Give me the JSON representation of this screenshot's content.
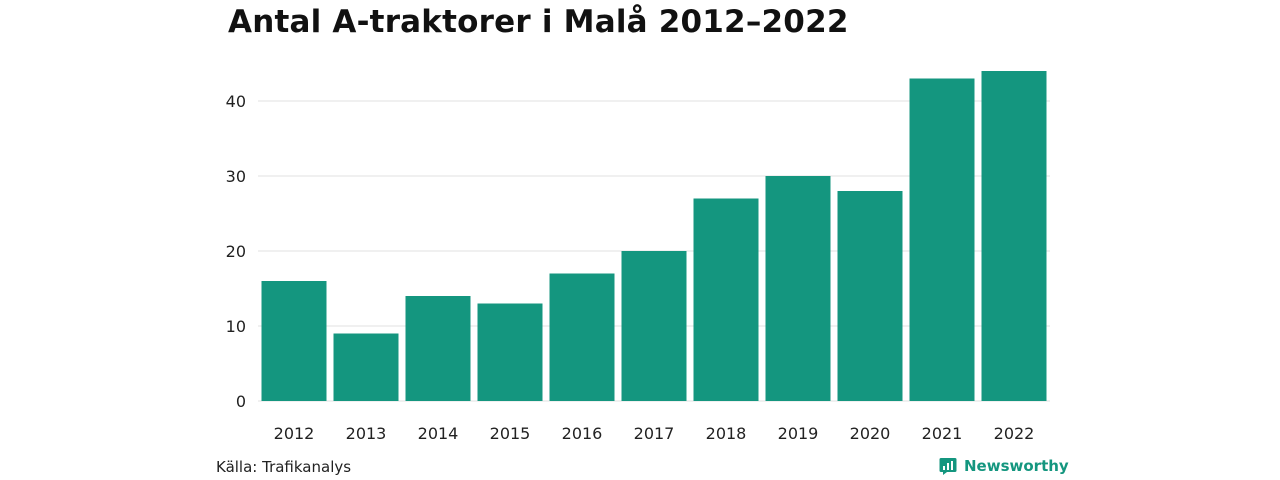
{
  "chart_data": {
    "type": "bar",
    "title": "Antal A-traktorer i Malå 2012–2022",
    "categories": [
      "2012",
      "2013",
      "2014",
      "2015",
      "2016",
      "2017",
      "2018",
      "2019",
      "2020",
      "2021",
      "2022"
    ],
    "values": [
      16,
      9,
      14,
      13,
      17,
      20,
      27,
      30,
      28,
      43,
      44
    ],
    "xlabel": "",
    "ylabel": "",
    "ylim": [
      0,
      44
    ],
    "yticks": [
      0,
      10,
      20,
      30,
      40
    ],
    "grid": true,
    "bar_color": "#14967f",
    "grid_color": "#e0e0e0"
  },
  "footer": {
    "source": "Källa: Trafikanalys",
    "brand": "Newsworthy",
    "brand_color": "#14967f",
    "brand_icon": "newsworthy-logo-icon"
  }
}
